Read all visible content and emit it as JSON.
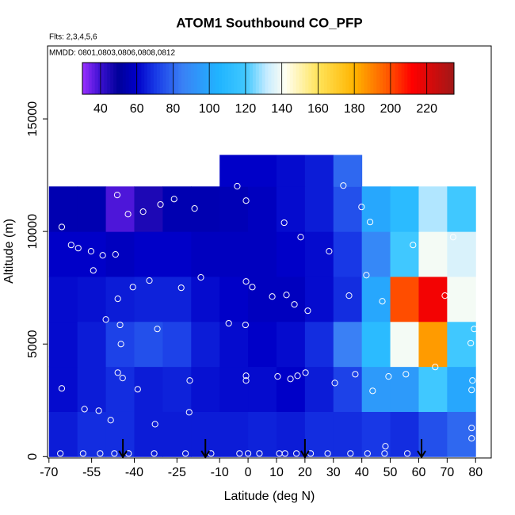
{
  "chart_data": {
    "type": "heatmap",
    "title": "ATOM1 Southbound CO_PFP",
    "subtitle": "Flts: 2,3,4,5,6",
    "annotation": "MMDD: 0801,0803,0806,0808,0812",
    "x_label": "Latitude (deg N)",
    "y_label": "Altitude (m)",
    "xlim": [
      -70.5,
      85.5
    ],
    "xticks": [
      -70,
      -55,
      -40,
      -25,
      -10,
      0,
      10,
      20,
      30,
      40,
      50,
      60,
      70,
      80
    ],
    "ylim": [
      -60,
      18240
    ],
    "yticks": [
      0,
      5000,
      10000,
      15000
    ],
    "x_edges": [
      -70,
      -60,
      -50,
      -40,
      -30,
      -20,
      -10,
      0,
      10,
      20,
      30,
      40,
      50,
      60,
      70,
      80
    ],
    "y_edges": [
      0,
      2000,
      4000,
      6000,
      8000,
      10000,
      12000,
      13400
    ],
    "values": [
      [
        65,
        68,
        68,
        65,
        65,
        65,
        65,
        66,
        65,
        68,
        68,
        70,
        68,
        75,
        80
      ],
      [
        62,
        65,
        68,
        65,
        66,
        63,
        62,
        62,
        60,
        65,
        72,
        95,
        95,
        120,
        100
      ],
      [
        62,
        65,
        72,
        75,
        72,
        65,
        62,
        60,
        62,
        68,
        85,
        110,
        140,
        185,
        120
      ],
      [
        62,
        63,
        65,
        66,
        66,
        62,
        60,
        58,
        58,
        62,
        68,
        100,
        200,
        215,
        140
      ],
      [
        60,
        60,
        58,
        60,
        60,
        58,
        58,
        58,
        60,
        62,
        70,
        88,
        120,
        140,
        135
      ],
      [
        55,
        55,
        38,
        45,
        55,
        55,
        56,
        58,
        62,
        65,
        75,
        100,
        110,
        130,
        120
      ],
      [
        null,
        null,
        null,
        null,
        null,
        null,
        60,
        60,
        62,
        65,
        80,
        null,
        null,
        null,
        null
      ]
    ],
    "points": {
      "x": [
        -65.5,
        -62.2,
        -59.7,
        -55.2,
        -51.1,
        -46.6,
        -54.4,
        -46,
        -36.9,
        -42.2,
        -30.8,
        -26,
        -18.8,
        -3.8,
        -0.7,
        33.5,
        39.9,
        42.9,
        12.7,
        18.5,
        28.5,
        41.6,
        58,
        72.1,
        -34.7,
        -40.5,
        -16.6,
        -23.5,
        -0.7,
        1.5,
        8.5,
        13.5,
        16.3,
        21,
        35.5,
        47.2,
        69.2,
        -45.8,
        -50,
        -45,
        -31.9,
        -6.8,
        -0.9,
        -44.7,
        78.3,
        79.5,
        65.8,
        55.5,
        -45.8,
        -44.1,
        -38.8,
        -20.5,
        -0.7,
        -0.7,
        10.4,
        14.9,
        17.4,
        20.2,
        30.5,
        37.7,
        49.4,
        43.8,
        78.9,
        78.6,
        -65.5,
        -57.5,
        -52.5,
        -48.3,
        -32.7,
        -20.7,
        78.6,
        78.6,
        48.3,
        -66,
        -58,
        -52,
        -47,
        -42,
        -33,
        -22,
        -13,
        -3,
        0,
        4,
        11,
        13,
        17,
        22,
        28,
        36,
        42,
        48,
        56
      ],
      "y": [
        10200,
        9400,
        9260,
        9120,
        8940,
        8980,
        8270,
        11620,
        10880,
        10770,
        11200,
        11440,
        11020,
        12010,
        11370,
        12040,
        11090,
        10420,
        10390,
        9750,
        9120,
        8060,
        9400,
        9750,
        7820,
        7530,
        7960,
        7500,
        7780,
        7530,
        7110,
        7180,
        6760,
        6480,
        7150,
        6900,
        7150,
        7010,
        6090,
        5850,
        5670,
        5920,
        5850,
        5000,
        5040,
        5670,
        3980,
        3660,
        3730,
        3490,
        2990,
        3380,
        3590,
        3380,
        3560,
        3450,
        3590,
        3730,
        3270,
        3660,
        3560,
        2920,
        3380,
        2960,
        3030,
        2110,
        2040,
        1620,
        1440,
        1970,
        1270,
        810,
        460,
        140,
        140,
        140,
        140,
        140,
        140,
        140,
        140,
        140,
        140,
        140,
        140,
        140,
        140,
        140,
        140,
        140,
        140,
        140,
        140
      ]
    },
    "arrows_x": [
      -44,
      -15,
      20,
      61
    ],
    "colorbar": {
      "lim": [
        30,
        235
      ],
      "ticks": [
        40,
        60,
        80,
        100,
        120,
        140,
        160,
        180,
        200,
        220
      ],
      "stops": [
        {
          "value": 30,
          "color": "#9a30ff"
        },
        {
          "value": 40,
          "color": "#3a10d0"
        },
        {
          "value": 50,
          "color": "#00009a"
        },
        {
          "value": 60,
          "color": "#0000c8"
        },
        {
          "value": 70,
          "color": "#1838e6"
        },
        {
          "value": 85,
          "color": "#3a80f5"
        },
        {
          "value": 105,
          "color": "#20b4ff"
        },
        {
          "value": 120,
          "color": "#40c8ff"
        },
        {
          "value": 132,
          "color": "#c8ecff"
        },
        {
          "value": 142,
          "color": "#fffff2"
        },
        {
          "value": 160,
          "color": "#ffe45a"
        },
        {
          "value": 180,
          "color": "#ffb400"
        },
        {
          "value": 198,
          "color": "#ff5a00"
        },
        {
          "value": 212,
          "color": "#ff0000"
        },
        {
          "value": 235,
          "color": "#a01818"
        }
      ]
    }
  }
}
